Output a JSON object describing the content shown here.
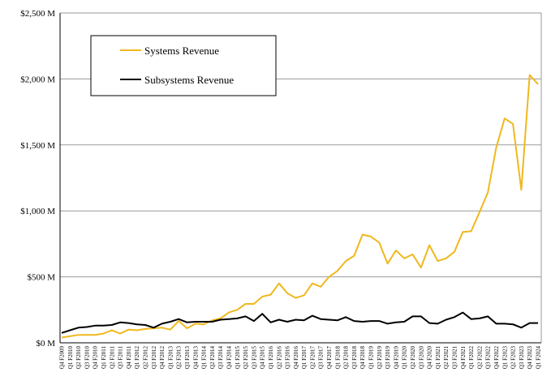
{
  "chart_data": {
    "type": "line",
    "title": "",
    "xlabel": "",
    "ylabel": "",
    "ylim": [
      0,
      2500
    ],
    "yticks": [
      {
        "value": 0,
        "label": "$0 M"
      },
      {
        "value": 500,
        "label": "$500 M"
      },
      {
        "value": 1000,
        "label": "$1,000 M"
      },
      {
        "value": 1500,
        "label": "$1,500 M"
      },
      {
        "value": 2000,
        "label": "$2,000 M"
      },
      {
        "value": 2500,
        "label": "$2,500 M"
      }
    ],
    "grid": "horizontal",
    "legend": "top-left",
    "x": [
      "Q4 F2009",
      "Q1 F2010",
      "Q2 F2010",
      "Q3 F2010",
      "Q4 F2010",
      "Q1 F2011",
      "Q2 F2011",
      "Q3 F2011",
      "Q4 F2011",
      "Q1 F2012",
      "Q2 F2012",
      "Q3 F2012",
      "Q4 F2012",
      "Q1 F2013",
      "Q2 F2013",
      "Q3 F2013",
      "Q4 F2013",
      "Q1 F2014",
      "Q2 F2014",
      "Q3 F2014",
      "Q4 F2014",
      "Q1 F2015",
      "Q2 F2015",
      "Q3 F2015",
      "Q4 F2015",
      "Q1 F2016",
      "Q2 F2016",
      "Q3 F2016",
      "Q4 F2016",
      "Q1 F2017",
      "Q2 F2017",
      "Q3 F2017",
      "Q4 F2017",
      "Q1 F2018",
      "Q2 F2018",
      "Q3 F2018",
      "Q4 F2018",
      "Q1 F2019",
      "Q2 F2019",
      "Q3 F2019",
      "Q4 F2019",
      "Q1 F2020",
      "Q2 F2020",
      "Q3 F2020",
      "Q4 F2020",
      "Q1 F2021",
      "Q2 F2021",
      "Q3 F2021",
      "Q4 F2021",
      "Q1 F2022",
      "Q2 F2022",
      "Q3 F2022",
      "Q4 F2022",
      "Q1 F2023",
      "Q2 F2023",
      "Q3 F2023",
      "Q4 F2023",
      "Q1 F2024"
    ],
    "series": [
      {
        "name": "Systems Revenue",
        "color": "#f0b81e",
        "values": [
          40,
          50,
          60,
          60,
          60,
          70,
          95,
          70,
          100,
          95,
          105,
          110,
          115,
          100,
          165,
          110,
          145,
          140,
          170,
          185,
          230,
          250,
          295,
          295,
          350,
          365,
          450,
          375,
          340,
          360,
          450,
          425,
          500,
          545,
          620,
          660,
          820,
          805,
          760,
          600,
          700,
          640,
          670,
          570,
          740,
          620,
          640,
          690,
          840,
          845,
          990,
          1140,
          1480,
          1700,
          1660,
          1160,
          2030,
          1960
        ]
      },
      {
        "name": "Subsystems Revenue",
        "color": "#000000",
        "values": [
          75,
          95,
          115,
          120,
          130,
          130,
          135,
          155,
          150,
          140,
          135,
          115,
          145,
          160,
          180,
          155,
          160,
          160,
          160,
          175,
          180,
          185,
          200,
          165,
          220,
          155,
          175,
          160,
          175,
          170,
          205,
          180,
          175,
          170,
          195,
          165,
          160,
          165,
          165,
          145,
          155,
          160,
          200,
          200,
          150,
          145,
          175,
          195,
          230,
          180,
          185,
          200,
          145,
          145,
          140,
          115,
          150,
          150
        ]
      }
    ]
  }
}
